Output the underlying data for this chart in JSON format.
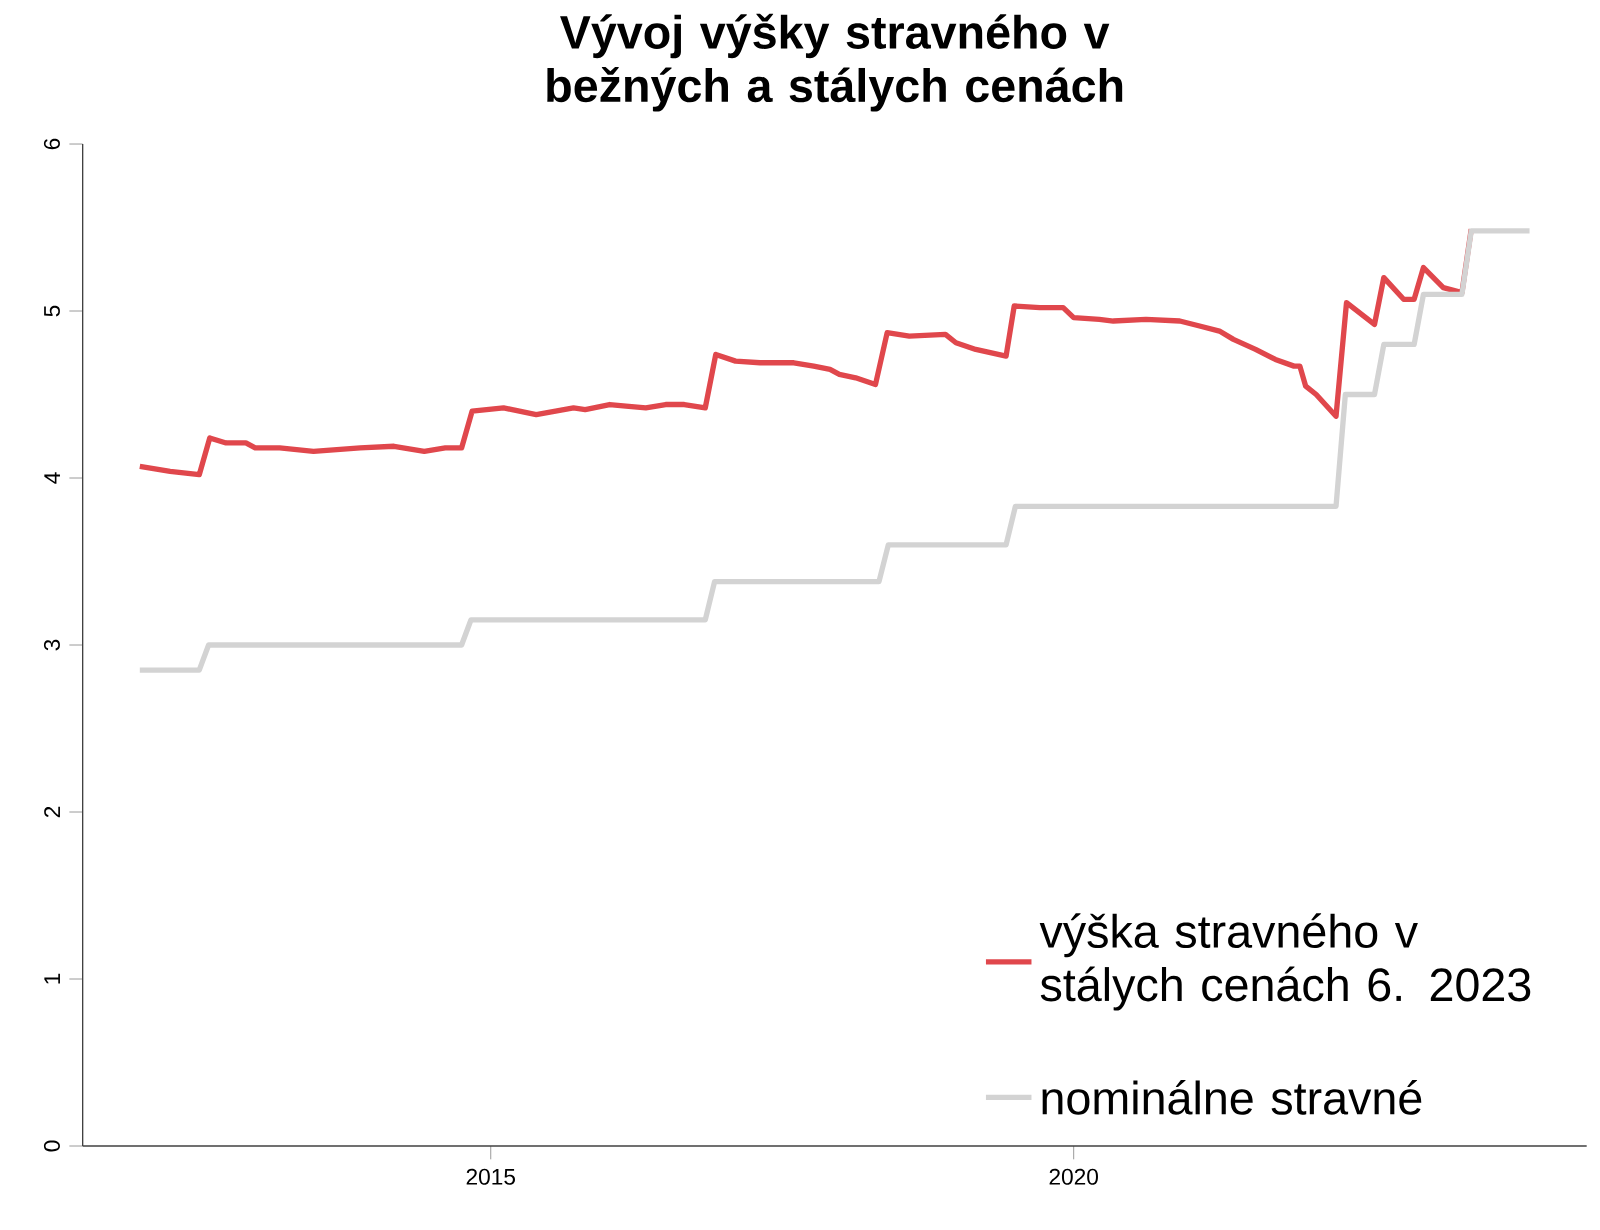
{
  "chart_data": {
    "type": "line",
    "title": "Vývoj výšky stravného v bežných a stálych cenách",
    "xlim": [
      2011.5,
      2024.4
    ],
    "xticks": [
      2015,
      2020
    ],
    "ylim": [
      0,
      6
    ],
    "yticks": [
      0,
      1,
      2,
      3,
      4,
      5,
      6
    ],
    "legend": "bottom right",
    "series": [
      {
        "name": "výška stravného v stálych cenách 6. 2023",
        "color": "#e0474c",
        "x": [
          2011.99,
          2012.25,
          2012.5,
          2012.59,
          2012.73,
          2012.9,
          2012.98,
          2013.19,
          2013.48,
          2013.88,
          2014.17,
          2014.43,
          2014.61,
          2014.75,
          2014.84,
          2015.11,
          2015.39,
          2015.71,
          2015.81,
          2016.02,
          2016.16,
          2016.33,
          2016.5,
          2016.66,
          2016.84,
          2016.93,
          2017.1,
          2017.31,
          2017.6,
          2017.77,
          2017.91,
          2017.99,
          2018.13,
          2018.3,
          2018.4,
          2018.59,
          2018.9,
          2018.99,
          2019.16,
          2019.42,
          2019.49,
          2019.71,
          2019.91,
          2020.0,
          2020.22,
          2020.34,
          2020.62,
          2020.91,
          2021.08,
          2021.25,
          2021.37,
          2021.56,
          2021.73,
          2021.89,
          2021.94,
          2021.99,
          2022.08,
          2022.25,
          2022.34,
          2022.58,
          2022.66,
          2022.83,
          2022.92,
          2023.0,
          2023.17,
          2023.33,
          2023.41
        ],
        "values": [
          4.07,
          4.04,
          4.02,
          4.24,
          4.21,
          4.21,
          4.18,
          4.18,
          4.16,
          4.18,
          4.19,
          4.16,
          4.18,
          4.18,
          4.4,
          4.42,
          4.38,
          4.42,
          4.41,
          4.44,
          4.43,
          4.42,
          4.44,
          4.44,
          4.42,
          4.74,
          4.7,
          4.69,
          4.69,
          4.67,
          4.65,
          4.62,
          4.6,
          4.56,
          4.87,
          4.85,
          4.86,
          4.81,
          4.77,
          4.73,
          5.03,
          5.02,
          5.02,
          4.96,
          4.95,
          4.94,
          4.95,
          4.94,
          4.91,
          4.88,
          4.83,
          4.77,
          4.71,
          4.67,
          4.67,
          4.55,
          4.5,
          4.37,
          5.05,
          4.92,
          5.2,
          5.07,
          5.07,
          5.26,
          5.14,
          5.11,
          5.49
        ]
      },
      {
        "name": "nominálne stravné",
        "color": "#d3d3d3",
        "x": [
          2011.99,
          2012.5,
          2012.58,
          2014.75,
          2014.83,
          2016.84,
          2016.92,
          2018.33,
          2018.41,
          2019.42,
          2019.5,
          2022.25,
          2022.33,
          2022.58,
          2022.66,
          2022.92,
          2023.0,
          2023.33,
          2023.41,
          2023.91
        ],
        "values": [
          2.85,
          2.85,
          3.0,
          3.0,
          3.15,
          3.15,
          3.38,
          3.38,
          3.6,
          3.6,
          3.83,
          3.83,
          4.5,
          4.5,
          4.8,
          4.8,
          5.1,
          5.1,
          5.48,
          5.48
        ]
      }
    ]
  }
}
